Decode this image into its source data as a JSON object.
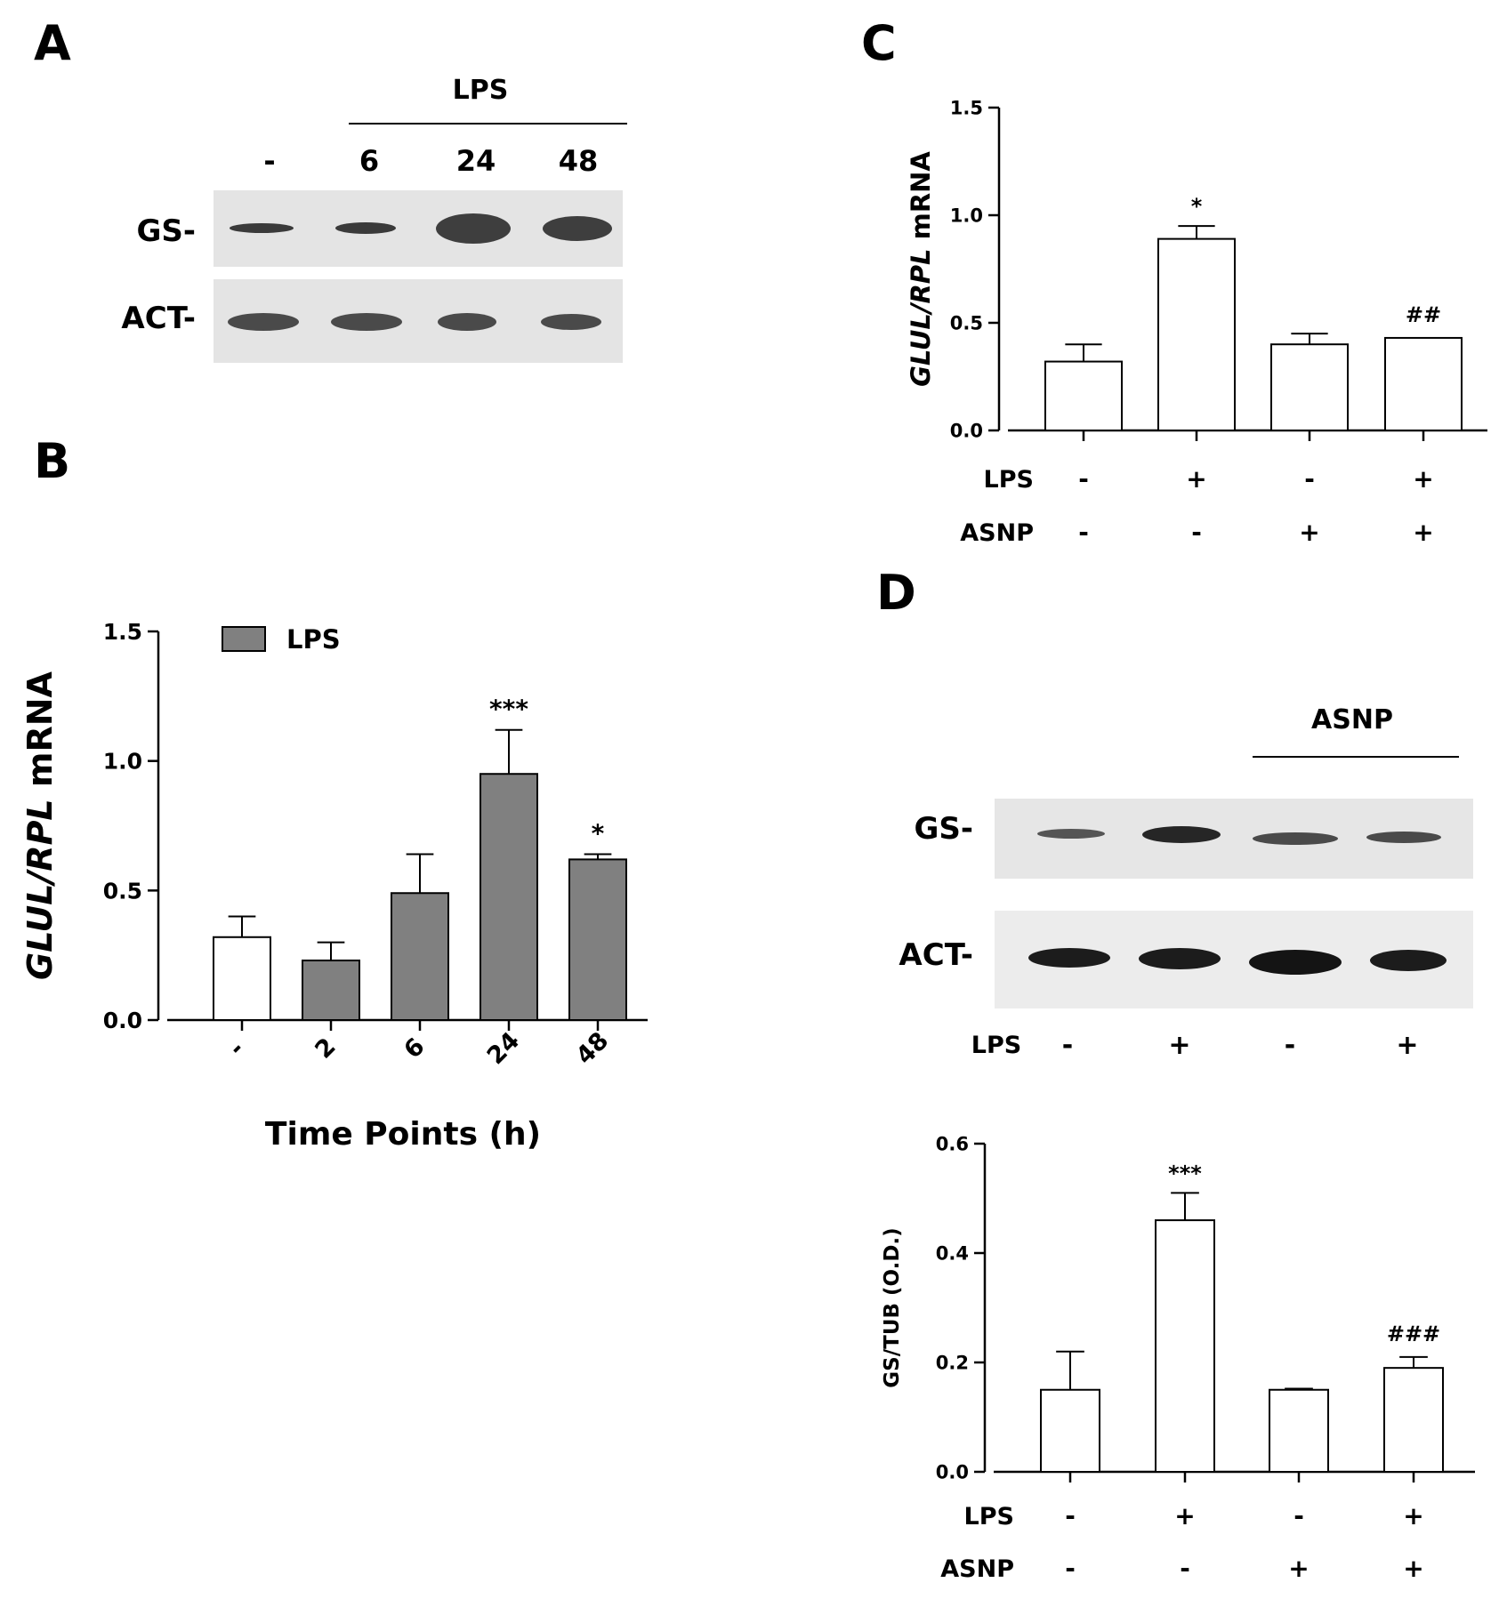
{
  "panelA": {
    "letter": "A",
    "header": "LPS",
    "lanes": [
      "-",
      "6",
      "24",
      "48"
    ],
    "rows": [
      "GS-",
      "ACT-"
    ]
  },
  "panelB": {
    "letter": "B"
  },
  "panelC": {
    "letter": "C"
  },
  "panelD": {
    "letter": "D",
    "header": "ASNP",
    "rows": [
      "GS-",
      "ACT-"
    ],
    "lps_row_label": "LPS",
    "lps": [
      "-",
      "+",
      "-",
      "+"
    ]
  },
  "chart_data": [
    {
      "id": "B",
      "type": "bar",
      "title": "",
      "xlabel": "Time Points (h)",
      "ylabel_italic": "GLUL/RPL",
      "ylabel_rest": " mRNA",
      "ylim": [
        0,
        1.5
      ],
      "yticks": [
        "0.0",
        "0.5",
        "1.0",
        "1.5"
      ],
      "categories": [
        "-",
        "2",
        "6",
        "24",
        "48"
      ],
      "values": [
        0.32,
        0.23,
        0.49,
        0.95,
        0.62
      ],
      "errors": [
        0.08,
        0.07,
        0.15,
        0.17,
        0.02
      ],
      "annotations": [
        "",
        "",
        "",
        "***",
        "*"
      ],
      "fills": [
        "#ffffff",
        "#808080",
        "#808080",
        "#808080",
        "#808080"
      ],
      "legend": [
        {
          "name": "LPS",
          "color": "#808080"
        }
      ],
      "legend_position": "top-left"
    },
    {
      "id": "C",
      "type": "bar",
      "title": "",
      "ylabel_italic": "GLUL/RPL",
      "ylabel_rest": " mRNA",
      "ylim": [
        0,
        1.5
      ],
      "yticks": [
        "0.0",
        "0.5",
        "1.0",
        "1.5"
      ],
      "values": [
        0.32,
        0.89,
        0.4,
        0.43
      ],
      "errors": [
        0.08,
        0.06,
        0.05,
        0.0
      ],
      "annotations": [
        "",
        "*",
        "",
        "##"
      ],
      "factor_rows": [
        {
          "label": "LPS",
          "values": [
            "-",
            "+",
            "-",
            "+"
          ]
        },
        {
          "label": "ASNP",
          "values": [
            "-",
            "-",
            "+",
            "+"
          ]
        }
      ]
    },
    {
      "id": "D",
      "type": "bar",
      "title": "",
      "ylabel": "GS/TUB (O.D.)",
      "ylim": [
        0,
        0.6
      ],
      "yticks": [
        "0.0",
        "0.2",
        "0.4",
        "0.6"
      ],
      "values": [
        0.15,
        0.46,
        0.15,
        0.19
      ],
      "errors": [
        0.07,
        0.05,
        0.002,
        0.02
      ],
      "annotations": [
        "",
        "***",
        "",
        "###"
      ],
      "factor_rows": [
        {
          "label": "LPS",
          "values": [
            "-",
            "+",
            "-",
            "+"
          ]
        },
        {
          "label": "ASNP",
          "values": [
            "-",
            "-",
            "+",
            "+"
          ]
        }
      ]
    }
  ]
}
